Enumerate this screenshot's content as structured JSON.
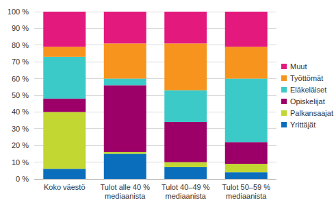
{
  "chart_data": {
    "type": "bar",
    "stacked": true,
    "grid": true,
    "legend": "right",
    "categories": [
      "Koko väestö",
      "Tulot alle 40 %\nmediaanista",
      "Tulot 40–49 %\nmediaanista",
      "Tulot 50–59 %\nmediaanista"
    ],
    "series": [
      {
        "name": "Yrittäjät",
        "color": "#0a6ebd",
        "values": [
          6,
          15,
          7,
          4
        ]
      },
      {
        "name": "Palkansaajat",
        "color": "#c2d732",
        "values": [
          34,
          1,
          3,
          5
        ]
      },
      {
        "name": "Opiskelijat",
        "color": "#9c0068",
        "values": [
          8,
          40,
          24,
          13
        ]
      },
      {
        "name": "Eläkeläiset",
        "color": "#3ccac8",
        "values": [
          25,
          4,
          19,
          38
        ]
      },
      {
        "name": "Työttömät",
        "color": "#f7941d",
        "values": [
          6,
          21,
          28,
          19
        ]
      },
      {
        "name": "Muut",
        "color": "#e3197e",
        "values": [
          21,
          19,
          19,
          21
        ]
      }
    ],
    "ylim": [
      0,
      100
    ],
    "yticks": [
      {
        "value": 0,
        "label": "0 %"
      },
      {
        "value": 10,
        "label": "10 %"
      },
      {
        "value": 20,
        "label": "20 %"
      },
      {
        "value": 30,
        "label": "30 %"
      },
      {
        "value": 40,
        "label": "40 %"
      },
      {
        "value": 50,
        "label": "50 %"
      },
      {
        "value": 60,
        "label": "60 %"
      },
      {
        "value": 70,
        "label": "70 %"
      },
      {
        "value": 80,
        "label": "80 %"
      },
      {
        "value": 90,
        "label": "90 %"
      },
      {
        "value": 100,
        "label": "100 %"
      }
    ]
  }
}
